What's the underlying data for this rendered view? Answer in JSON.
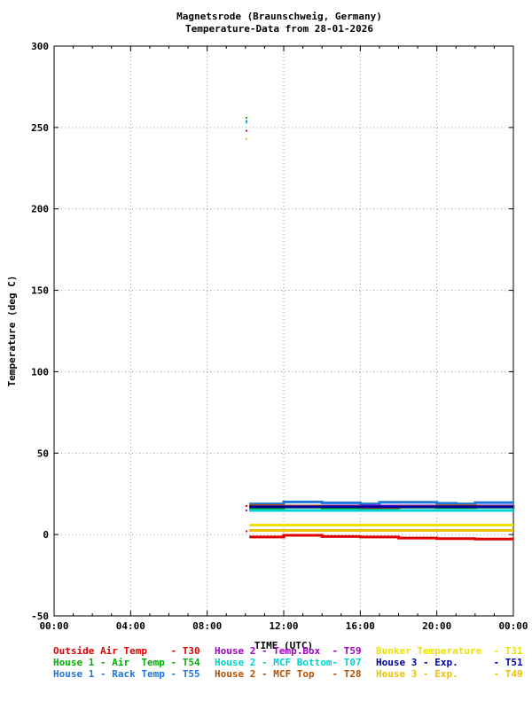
{
  "chart_data": {
    "type": "line",
    "title": "Magnetsrode (Braunschweig, Germany)",
    "subtitle": "Temperature-Data from 28-01-2026",
    "xlabel": "TIME (UTC)",
    "ylabel": "Temperature (deg C)",
    "xlim": [
      0,
      24
    ],
    "ylim": [
      -50,
      300
    ],
    "x_ticks": [
      "00:00",
      "04:00",
      "08:00",
      "12:00",
      "16:00",
      "20:00",
      "00:00"
    ],
    "y_ticks": [
      300,
      250,
      200,
      150,
      100,
      50,
      0,
      -50
    ],
    "grid": true,
    "series": [
      {
        "name": "Outside Air Temp    - T30",
        "color": "#e00000",
        "x": [
          10.2,
          10.5,
          12,
          14,
          16,
          18,
          20,
          22,
          24
        ],
        "y": [
          -1.5,
          -1.5,
          -0.5,
          -1.2,
          -1.5,
          -2.2,
          -2.5,
          -2.8,
          -2.8
        ]
      },
      {
        "name": "House 1 - Air  Temp - T54",
        "color": "#00b000",
        "x": [
          10.2,
          10.5,
          12,
          14,
          16,
          18,
          20,
          22,
          24
        ],
        "y": [
          15.5,
          16.2,
          16.8,
          16.5,
          16.3,
          16.8,
          16.6,
          16.8,
          17
        ]
      },
      {
        "name": "House 1 - Rack Temp - T55",
        "color": "#1e78dc",
        "x": [
          10.2,
          10.5,
          12,
          14,
          16,
          17,
          20,
          21,
          22,
          24
        ],
        "y": [
          18.8,
          18.8,
          20,
          19.5,
          18.8,
          19.8,
          19.2,
          18.8,
          19.6,
          19.6
        ]
      },
      {
        "name": "House 2 - Temp.Box  - T59",
        "color": "#a000c8",
        "x": [
          10.2,
          24
        ],
        "y": [
          17.5,
          17.5
        ]
      },
      {
        "name": "House 2 - MCF Bottom- T07",
        "color": "#00d2d2",
        "x": [
          10.2,
          24
        ],
        "y": [
          14.8,
          14.8
        ]
      },
      {
        "name": "House 2 - MCF Top   - T28",
        "color": "#b45000",
        "x": [
          10.2,
          12,
          14,
          16,
          18,
          20,
          22,
          24
        ],
        "y": [
          17.8,
          17.5,
          17.2,
          16.6,
          17.2,
          17.6,
          17.2,
          16.8
        ]
      },
      {
        "name": "Bunker Temperature  - T31",
        "color": "#f0e000",
        "x": [
          10.2,
          10.5,
          24
        ],
        "y": [
          5.8,
          5.8,
          5.8
        ]
      },
      {
        "name": "House 3 - Exp.      - T51",
        "color": "#0000a0",
        "x": [
          10.2,
          24
        ],
        "y": [
          17,
          17
        ]
      },
      {
        "name": "House 3 - Exp.      - T49",
        "color": "#f0c000",
        "x": [
          10.2,
          10.5,
          24
        ],
        "y": [
          2.5,
          2.5,
          2.5
        ]
      }
    ],
    "outliers": [
      {
        "x": 10.05,
        "y": 256,
        "color": "#00b000"
      },
      {
        "x": 10.05,
        "y": 254,
        "color": "#1e78dc"
      },
      {
        "x": 10.05,
        "y": 253,
        "color": "#00d2d2"
      },
      {
        "x": 10.05,
        "y": 248,
        "color": "#e00000"
      },
      {
        "x": 10.05,
        "y": 243,
        "color": "#f0c000"
      },
      {
        "x": 10.05,
        "y": 17.5,
        "color": "#e00000"
      },
      {
        "x": 10.05,
        "y": 14.8,
        "color": "#a000c8"
      },
      {
        "x": 10.05,
        "y": 2,
        "color": "#e00000"
      }
    ]
  }
}
